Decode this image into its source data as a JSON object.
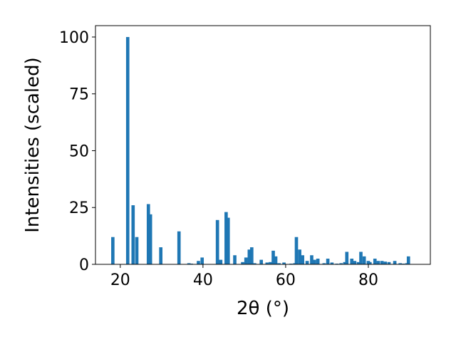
{
  "chart_data": {
    "type": "bar",
    "title": "",
    "xlabel": "2θ (°)",
    "ylabel": "Intensities (scaled)",
    "xlim": [
      14,
      95
    ],
    "ylim": [
      0,
      105
    ],
    "xticks": [
      20,
      40,
      60,
      80
    ],
    "yticks": [
      0,
      25,
      50,
      75,
      100
    ],
    "grid": false,
    "legend": "none",
    "bar_width": 0.8,
    "color": "#1f77b4",
    "series": [
      {
        "x": [
          18.2,
          21.8,
          23.1,
          24.0,
          26.8,
          27.3,
          29.8,
          34.2,
          36.6,
          37.2,
          38.9,
          39.8,
          43.5,
          44.3,
          45.6,
          46.1,
          47.7,
          49.6,
          50.4,
          51.2,
          51.8,
          52.5,
          54.1,
          55.5,
          56.3,
          57.0,
          57.6,
          58.4,
          59.6,
          61.3,
          62.2,
          62.6,
          63.4,
          64.1,
          65.2,
          66.3,
          67.0,
          67.8,
          69.3,
          70.2,
          71.2,
          72.4,
          73.4,
          74.3,
          74.8,
          76.0,
          76.7,
          77.6,
          78.2,
          79.0,
          80.0,
          80.4,
          81.6,
          82.4,
          83.3,
          84.1,
          85.0,
          86.4,
          87.7,
          88.4,
          89.3,
          89.7
        ],
        "values": [
          12,
          100,
          26,
          12,
          26.5,
          22,
          7.5,
          14.5,
          0.5,
          0.3,
          1.5,
          3,
          19.5,
          2,
          23,
          20.5,
          4,
          1,
          3,
          6.5,
          7.5,
          0.5,
          2,
          0.8,
          1,
          6,
          3.5,
          0.5,
          0.8,
          0.3,
          0.5,
          12,
          6.5,
          4,
          1.5,
          4,
          2,
          2.5,
          0.5,
          2.5,
          0.8,
          0.3,
          0.5,
          1,
          5.5,
          2.5,
          1.5,
          1,
          5.5,
          3.5,
          1.5,
          1,
          2.5,
          1.5,
          1.5,
          1.2,
          1,
          1.5,
          0.5,
          0.3,
          0.5,
          3.5
        ]
      }
    ]
  }
}
